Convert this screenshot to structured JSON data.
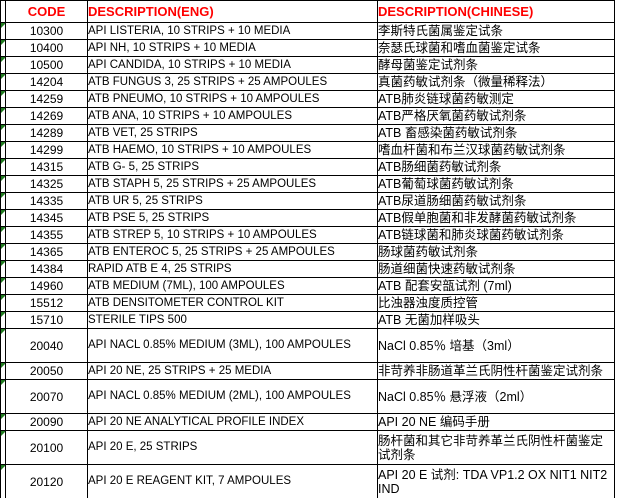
{
  "header": {
    "code": "CODE",
    "eng": "DESCRIPTION(ENG)",
    "chinese": "DESCRIPTION(CHINESE)"
  },
  "watermark": {
    "text": "中国仪器网"
  },
  "colors": {
    "header_bg": "#FFFF00",
    "header_text": "#FF0000",
    "border": "#000000",
    "indicator_triangle": "#1F7A1F",
    "watermark": "#BDBDBD"
  },
  "table": {
    "rows": [
      {
        "code": "10300",
        "eng": "API LISTERIA, 10 STRIPS + 10 MEDIA",
        "chs": "李斯特氏菌属鉴定试条",
        "tall": false
      },
      {
        "code": "10400",
        "eng": "API NH, 10 STRIPS + 10 MEDIA",
        "chs": "奈瑟氏球菌和嗜血菌鉴定试条",
        "tall": false
      },
      {
        "code": "10500",
        "eng": "API CANDIDA, 10 STRIPS + 10 MEDIA",
        "chs": "酵母菌鉴定试剂条",
        "tall": false
      },
      {
        "code": "14204",
        "eng": "ATB FUNGUS 3, 25 STRIPS + 25 AMPOULES",
        "chs": "真菌药敏试剂条（微量稀释法）",
        "tall": false
      },
      {
        "code": "14259",
        "eng": "ATB PNEUMO, 10 STRIPS + 10 AMPOULES",
        "chs": "ATB肺炎链球菌药敏测定",
        "tall": false
      },
      {
        "code": "14269",
        "eng": "ATB ANA, 10 STRIPS + 10 AMPOULES",
        "chs": "ATB严格厌氧菌药敏试剂条",
        "tall": false
      },
      {
        "code": "14289",
        "eng": "ATB VET, 25 STRIPS",
        "chs": "ATB 畜感染菌药敏试剂条",
        "tall": false
      },
      {
        "code": "14299",
        "eng": "ATB HAEMO, 10 STRIPS + 10 AMPOULES",
        "chs": "嗜血杆菌和布兰汉球菌药敏试剂条",
        "tall": false
      },
      {
        "code": "14315",
        "eng": "ATB G- 5, 25 STRIPS",
        "chs": "ATB肠细菌药敏试剂条",
        "tall": false
      },
      {
        "code": "14325",
        "eng": "ATB STAPH 5, 25 STRIPS + 25 AMPOULES",
        "chs": "ATB葡萄球菌药敏试剂条",
        "tall": false
      },
      {
        "code": "14335",
        "eng": "ATB UR 5, 25 STRIPS",
        "chs": "ATB尿道肠细菌药敏试剂条",
        "tall": false
      },
      {
        "code": "14345",
        "eng": "ATB PSE 5, 25 STRIPS",
        "chs": "ATB假单胞菌和非发酵菌药敏试剂条",
        "tall": false
      },
      {
        "code": "14355",
        "eng": "ATB STREP 5, 10 STRIPS + 10 AMPOULES",
        "chs": "ATB链球菌和肺炎球菌药敏试剂条",
        "tall": false
      },
      {
        "code": "14365",
        "eng": "ATB ENTEROC 5, 25 STRIPS + 25 AMPOULES",
        "chs": "肠球菌药敏试剂条",
        "tall": false
      },
      {
        "code": "14384",
        "eng": "RAPID ATB E 4, 25 STRIPS",
        "chs": "肠道细菌快速药敏试剂条",
        "tall": false
      },
      {
        "code": "14960",
        "eng": "ATB MEDIUM (7ML), 100 AMPOULES",
        "chs": "ATB 配套安瓿试剂 (7ml)",
        "tall": false
      },
      {
        "code": "15512",
        "eng": "ATB DENSITOMETER CONTROL KIT",
        "chs": "比浊器浊度质控管",
        "tall": false
      },
      {
        "code": "15710",
        "eng": "STERILE TIPS 500",
        "chs": "ATB 无菌加样吸头",
        "tall": false
      },
      {
        "code": "20040",
        "eng": "API NACL 0.85% MEDIUM (3ML), 100 AMPOULES",
        "chs": "NaCl 0.85％ 培基（3ml）",
        "tall": true
      },
      {
        "code": "20050",
        "eng": "API 20 NE, 25 STRIPS + 25 MEDIA",
        "chs": "非苛养非肠道革兰氏阴性杆菌鉴定试剂条",
        "tall": false
      },
      {
        "code": "20070",
        "eng": "API NACL 0.85% MEDIUM (2ML), 100 AMPOULES",
        "chs": "NaCl 0.85％ 悬浮液（2ml）",
        "tall": true
      },
      {
        "code": "20090",
        "eng": "API 20 NE ANALYTICAL PROFILE INDEX",
        "chs": "API 20 NE 编码手册",
        "tall": false
      },
      {
        "code": "20100",
        "eng": "API 20 E, 25 STRIPS",
        "chs": "肠杆菌和其它非苛养革兰氏阴性杆菌鉴定试剂条",
        "tall": true
      },
      {
        "code": "20120",
        "eng": "API 20 E REAGENT KIT, 7 AMPOULES",
        "chs": "API 20 E 试剂: TDA VP1.2 OX NIT1 NIT2 IND",
        "tall": true
      }
    ]
  }
}
